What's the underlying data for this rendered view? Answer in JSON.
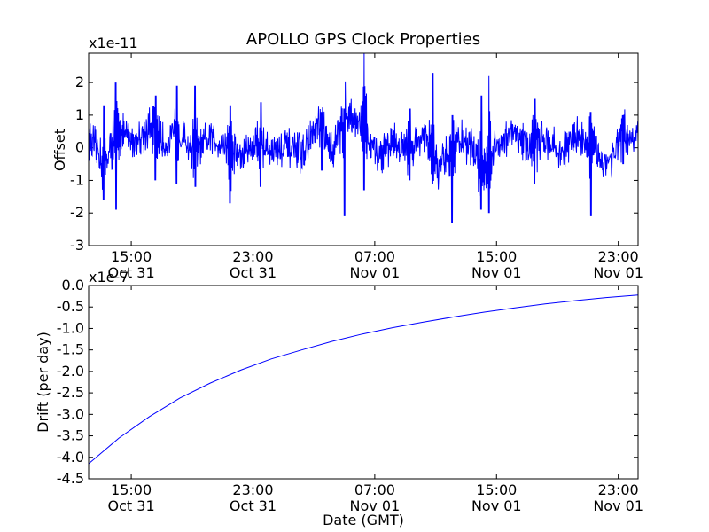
{
  "chart_data": [
    {
      "type": "line",
      "title": "APOLLO GPS Clock Properties",
      "xlabel": "",
      "ylabel": "Offset",
      "y_multiplier": "x1e-11",
      "ylim": [
        -3,
        2.9
      ],
      "y_ticks": [
        "-3",
        "-2",
        "-1",
        "0",
        "1",
        "2"
      ],
      "x_tick_labels": [
        {
          "time": "15:00",
          "date": "Oct 31"
        },
        {
          "time": "23:00",
          "date": "Oct 31"
        },
        {
          "time": "07:00",
          "date": "Nov 01"
        },
        {
          "time": "15:00",
          "date": "Nov 01"
        },
        {
          "time": "23:00",
          "date": "Nov 01"
        }
      ],
      "xlim_hours": [
        12.2,
        48.3
      ],
      "x_ticks_hours": [
        15,
        23,
        31,
        39,
        47
      ],
      "series": [
        {
          "color": "#0000ff",
          "x_hours": [
            12.2,
            13.2,
            14.2,
            15.2,
            16.2,
            17.2,
            18.2,
            19.2,
            20.2,
            21.2,
            22.2,
            23.2,
            24.2,
            25.2,
            26.2,
            27.2,
            28.2,
            29.2,
            30.2,
            31.2,
            32.2,
            33.2,
            34.2,
            35.2,
            36.2,
            37.2,
            38.2,
            39.2,
            40.2,
            41.2,
            42.2,
            43.2,
            44.2,
            45.2,
            46.2,
            47.2,
            48.2
          ],
          "values": [
            0.3,
            -0.4,
            0.5,
            0.2,
            0.6,
            0.1,
            0.4,
            -0.2,
            0.3,
            0.1,
            -0.3,
            0.2,
            -0.1,
            0.0,
            -0.2,
            0.6,
            -0.1,
            1.2,
            0.5,
            -0.3,
            0.2,
            -0.1,
            0.4,
            -0.8,
            0.3,
            0.1,
            -0.6,
            0.2,
            0.4,
            0.0,
            0.3,
            -0.2,
            0.4,
            0.1,
            -0.5,
            0.2,
            0.3
          ],
          "peaks": [
            {
              "x_hours": 13.2,
              "max": 1.3,
              "min": -1.6
            },
            {
              "x_hours": 14.0,
              "max": 2.0,
              "min": -1.9
            },
            {
              "x_hours": 16.6,
              "max": 1.6,
              "min": -1.0
            },
            {
              "x_hours": 18.0,
              "max": 1.9,
              "min": -1.1
            },
            {
              "x_hours": 19.2,
              "max": 1.9,
              "min": -1.2
            },
            {
              "x_hours": 21.5,
              "max": 1.3,
              "min": -1.7
            },
            {
              "x_hours": 23.5,
              "max": 1.4,
              "min": -1.2
            },
            {
              "x_hours": 27.5,
              "max": 1.1,
              "min": -0.7
            },
            {
              "x_hours": 29.0,
              "max": 1.2,
              "min": -2.1
            },
            {
              "x_hours": 30.3,
              "max": 2.9,
              "min": -1.3
            },
            {
              "x_hours": 33.3,
              "max": 1.2,
              "min": -1.0
            },
            {
              "x_hours": 34.8,
              "max": 2.3,
              "min": -1.1
            },
            {
              "x_hours": 36.1,
              "max": 1.0,
              "min": -2.3
            },
            {
              "x_hours": 38.0,
              "max": 1.6,
              "min": -1.9
            },
            {
              "x_hours": 38.5,
              "max": 2.2,
              "min": -2.0
            },
            {
              "x_hours": 41.5,
              "max": 1.5,
              "min": -1.1
            },
            {
              "x_hours": 45.2,
              "max": 1.1,
              "min": -2.1
            },
            {
              "x_hours": 47.3,
              "max": 1.0,
              "min": -0.5
            }
          ]
        }
      ]
    },
    {
      "type": "line",
      "title": "",
      "xlabel": "Date (GMT)",
      "ylabel": "Drift (per day)",
      "y_multiplier": "x1e-7",
      "ylim": [
        -4.5,
        0.0
      ],
      "y_ticks": [
        "-4.5",
        "-4.0",
        "-3.5",
        "-3.0",
        "-2.5",
        "-2.0",
        "-1.5",
        "-1.0",
        "-0.5",
        "0.0"
      ],
      "x_tick_labels": [
        {
          "time": "15:00",
          "date": "Oct 31"
        },
        {
          "time": "23:00",
          "date": "Oct 31"
        },
        {
          "time": "07:00",
          "date": "Nov 01"
        },
        {
          "time": "15:00",
          "date": "Nov 01"
        },
        {
          "time": "23:00",
          "date": "Nov 01"
        }
      ],
      "xlim_hours": [
        12.2,
        48.3
      ],
      "x_ticks_hours": [
        15,
        23,
        31,
        39,
        47
      ],
      "series": [
        {
          "color": "#0000ff",
          "x_hours": [
            12.2,
            14.2,
            16.2,
            18.2,
            20.2,
            22.2,
            24.2,
            26.2,
            28.2,
            30.2,
            32.2,
            34.2,
            36.2,
            38.2,
            40.2,
            42.2,
            44.2,
            46.2,
            48.3
          ],
          "values": [
            -4.15,
            -3.55,
            -3.05,
            -2.62,
            -2.27,
            -1.97,
            -1.71,
            -1.5,
            -1.3,
            -1.13,
            -0.98,
            -0.85,
            -0.73,
            -0.62,
            -0.52,
            -0.43,
            -0.35,
            -0.28,
            -0.22
          ]
        }
      ]
    }
  ]
}
